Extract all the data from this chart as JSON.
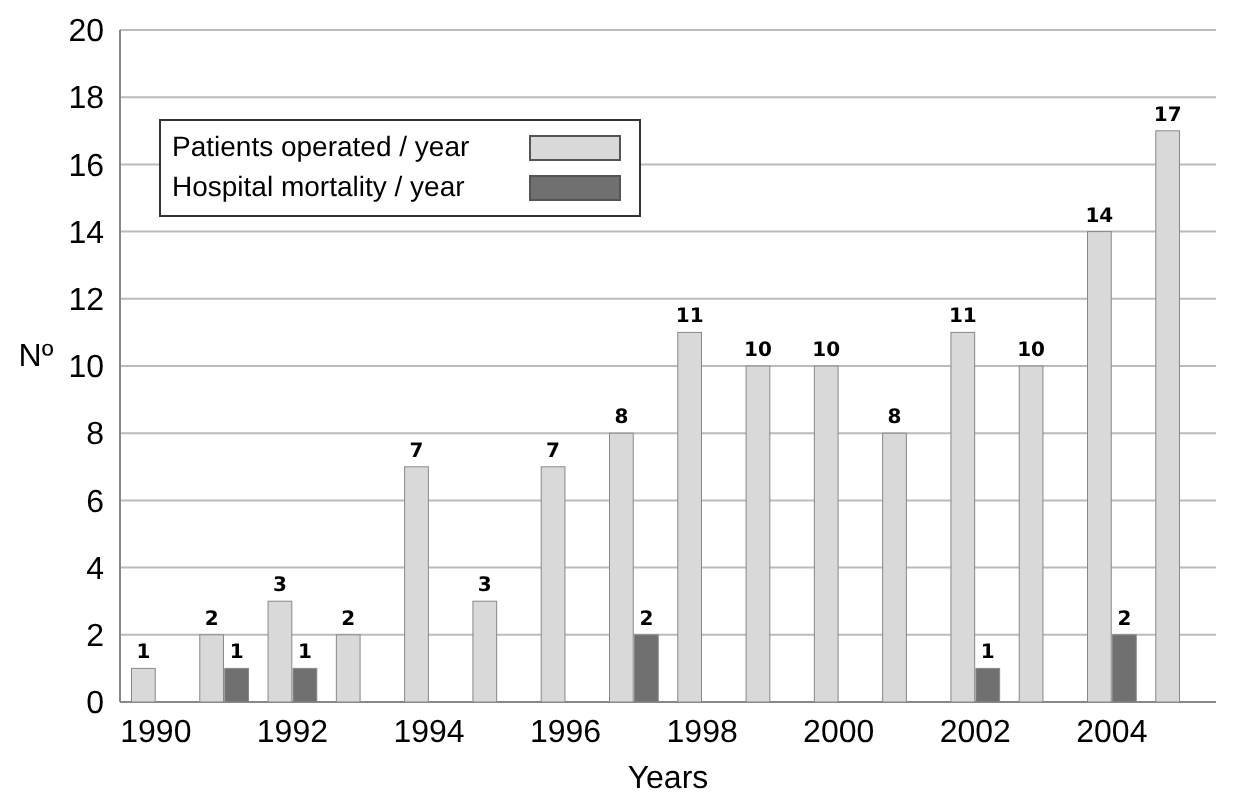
{
  "chart_data": {
    "type": "bar",
    "xlabel": "Years",
    "ylabel": "Nº",
    "categories": [
      "1990",
      null,
      "1992",
      null,
      "1994",
      null,
      "1996",
      null,
      "1998",
      null,
      "2000",
      null,
      "2002",
      null,
      "2004",
      null
    ],
    "series": [
      {
        "name": "Patients operated / year",
        "color": "#d9d9d9",
        "values": [
          1,
          2,
          3,
          2,
          7,
          3,
          7,
          8,
          11,
          10,
          10,
          8,
          11,
          10,
          14,
          17
        ],
        "value_labels": [
          "1",
          "2",
          "3",
          "2",
          "7",
          "3",
          "7",
          "8",
          "11",
          "10",
          "10",
          "8",
          "11",
          "10",
          "14",
          "17"
        ]
      },
      {
        "name": "Hospital mortality / year",
        "color": "#707070",
        "values": [
          null,
          1,
          1,
          null,
          null,
          null,
          null,
          2,
          null,
          null,
          null,
          null,
          1,
          null,
          2,
          null
        ],
        "value_labels": [
          null,
          "1",
          "1",
          null,
          null,
          null,
          null,
          "2",
          null,
          null,
          null,
          null,
          "1",
          null,
          "2",
          null
        ]
      }
    ],
    "ylim": [
      0,
      20
    ],
    "yticks": [
      0,
      2,
      4,
      6,
      8,
      10,
      12,
      14,
      16,
      18,
      20
    ],
    "grid": "y",
    "legend": "top left"
  }
}
